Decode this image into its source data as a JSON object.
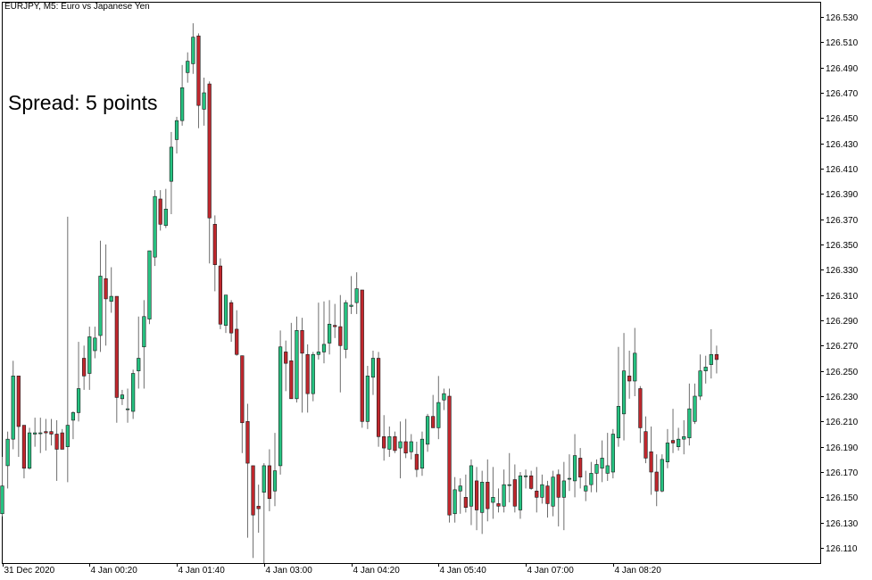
{
  "header": {
    "title": "EURJPY, M5:  Euro vs Japanese Yen",
    "spread_label": "Spread: 5 points"
  },
  "colors": {
    "bull": "#26c281",
    "bear": "#c0272d",
    "wick": "#6d6d6d",
    "grid_frame": "#000000",
    "background": "#ffffff"
  },
  "chart_data": {
    "type": "candlestick",
    "symbol": "EURJPY",
    "timeframe": "M5",
    "ylim": [
      126.098,
      126.542
    ],
    "y_ticks": [
      "126.530",
      "126.510",
      "126.490",
      "126.470",
      "126.450",
      "126.430",
      "126.410",
      "126.390",
      "126.370",
      "126.350",
      "126.330",
      "126.310",
      "126.290",
      "126.270",
      "126.250",
      "126.230",
      "126.210",
      "126.190",
      "126.170",
      "126.150",
      "126.130",
      "126.110"
    ],
    "x_tick_labels": [
      "31 Dec 2020",
      "4 Jan 00:20",
      "4 Jan 01:40",
      "4 Jan 03:00",
      "4 Jan 04:20",
      "4 Jan 05:40",
      "4 Jan 07:00",
      "4 Jan 08:20"
    ],
    "x_tick_bar_index": [
      0,
      16,
      32,
      48,
      64,
      80,
      96,
      112
    ],
    "candles": [
      {
        "o": 126.137,
        "h": 126.182,
        "l": 126.135,
        "c": 126.159
      },
      {
        "o": 126.175,
        "h": 126.202,
        "l": 126.157,
        "c": 126.196
      },
      {
        "o": 126.196,
        "h": 126.258,
        "l": 126.188,
        "c": 126.246
      },
      {
        "o": 126.246,
        "h": 126.246,
        "l": 126.182,
        "c": 126.206
      },
      {
        "o": 126.207,
        "h": 126.207,
        "l": 126.165,
        "c": 126.173
      },
      {
        "o": 126.173,
        "h": 126.205,
        "l": 126.172,
        "c": 126.201
      },
      {
        "o": 126.2,
        "h": 126.213,
        "l": 126.19,
        "c": 126.201
      },
      {
        "o": 126.201,
        "h": 126.213,
        "l": 126.185,
        "c": 126.201
      },
      {
        "o": 126.202,
        "h": 126.212,
        "l": 126.187,
        "c": 126.201
      },
      {
        "o": 126.202,
        "h": 126.212,
        "l": 126.191,
        "c": 126.2
      },
      {
        "o": 126.2,
        "h": 126.211,
        "l": 126.163,
        "c": 126.188
      },
      {
        "o": 126.201,
        "h": 126.204,
        "l": 126.19,
        "c": 126.188
      },
      {
        "o": 126.19,
        "h": 126.372,
        "l": 126.162,
        "c": 126.207
      },
      {
        "o": 126.211,
        "h": 126.218,
        "l": 126.196,
        "c": 126.217
      },
      {
        "o": 126.217,
        "h": 126.273,
        "l": 126.21,
        "c": 126.236
      },
      {
        "o": 126.26,
        "h": 126.27,
        "l": 126.235,
        "c": 126.246
      },
      {
        "o": 126.248,
        "h": 126.285,
        "l": 126.235,
        "c": 126.277
      },
      {
        "o": 126.266,
        "h": 126.285,
        "l": 126.26,
        "c": 126.276
      },
      {
        "o": 126.278,
        "h": 126.353,
        "l": 126.265,
        "c": 126.325
      },
      {
        "o": 126.323,
        "h": 126.35,
        "l": 126.27,
        "c": 126.307
      },
      {
        "o": 126.305,
        "h": 126.332,
        "l": 126.296,
        "c": 126.309
      },
      {
        "o": 126.309,
        "h": 126.309,
        "l": 126.209,
        "c": 126.229
      },
      {
        "o": 126.228,
        "h": 126.235,
        "l": 126.223,
        "c": 126.231
      },
      {
        "o": 126.22,
        "h": 126.236,
        "l": 126.209,
        "c": 126.22
      },
      {
        "o": 126.218,
        "h": 126.251,
        "l": 126.212,
        "c": 126.248
      },
      {
        "o": 126.25,
        "h": 126.293,
        "l": 126.236,
        "c": 126.26
      },
      {
        "o": 126.269,
        "h": 126.306,
        "l": 126.236,
        "c": 126.293
      },
      {
        "o": 126.291,
        "h": 126.345,
        "l": 126.287,
        "c": 126.345
      },
      {
        "o": 126.34,
        "h": 126.393,
        "l": 126.333,
        "c": 126.388
      },
      {
        "o": 126.386,
        "h": 126.393,
        "l": 126.361,
        "c": 126.366
      },
      {
        "o": 126.365,
        "h": 126.394,
        "l": 126.363,
        "c": 126.378
      },
      {
        "o": 126.4,
        "h": 126.439,
        "l": 126.374,
        "c": 126.427
      },
      {
        "o": 126.433,
        "h": 126.451,
        "l": 126.422,
        "c": 126.448
      },
      {
        "o": 126.448,
        "h": 126.492,
        "l": 126.444,
        "c": 126.474
      },
      {
        "o": 126.486,
        "h": 126.502,
        "l": 126.478,
        "c": 126.495
      },
      {
        "o": 126.493,
        "h": 126.525,
        "l": 126.485,
        "c": 126.514
      },
      {
        "o": 126.515,
        "h": 126.517,
        "l": 126.442,
        "c": 126.46
      },
      {
        "o": 126.457,
        "h": 126.482,
        "l": 126.444,
        "c": 126.47
      },
      {
        "o": 126.477,
        "h": 126.479,
        "l": 126.335,
        "c": 126.371
      },
      {
        "o": 126.366,
        "h": 126.373,
        "l": 126.313,
        "c": 126.334
      },
      {
        "o": 126.333,
        "h": 126.339,
        "l": 126.283,
        "c": 126.287
      },
      {
        "o": 126.286,
        "h": 126.31,
        "l": 126.28,
        "c": 126.31
      },
      {
        "o": 126.304,
        "h": 126.306,
        "l": 126.273,
        "c": 126.28
      },
      {
        "o": 126.283,
        "h": 126.298,
        "l": 126.262,
        "c": 126.263
      },
      {
        "o": 126.262,
        "h": 126.262,
        "l": 126.185,
        "c": 126.209
      },
      {
        "o": 126.21,
        "h": 126.224,
        "l": 126.118,
        "c": 126.177
      },
      {
        "o": 126.175,
        "h": 126.175,
        "l": 126.102,
        "c": 126.136
      },
      {
        "o": 126.143,
        "h": 126.16,
        "l": 126.122,
        "c": 126.141
      },
      {
        "o": 126.154,
        "h": 126.177,
        "l": 126.098,
        "c": 126.175
      },
      {
        "o": 126.175,
        "h": 126.188,
        "l": 126.139,
        "c": 126.149
      },
      {
        "o": 126.155,
        "h": 126.201,
        "l": 126.143,
        "c": 126.171
      },
      {
        "o": 126.175,
        "h": 126.282,
        "l": 126.168,
        "c": 126.269
      },
      {
        "o": 126.265,
        "h": 126.274,
        "l": 126.234,
        "c": 126.256
      },
      {
        "o": 126.258,
        "h": 126.288,
        "l": 126.228,
        "c": 126.228
      },
      {
        "o": 126.228,
        "h": 126.293,
        "l": 126.225,
        "c": 126.282
      },
      {
        "o": 126.282,
        "h": 126.292,
        "l": 126.217,
        "c": 126.264
      },
      {
        "o": 126.263,
        "h": 126.271,
        "l": 126.217,
        "c": 126.232
      },
      {
        "o": 126.232,
        "h": 126.265,
        "l": 126.226,
        "c": 126.263
      },
      {
        "o": 126.263,
        "h": 126.304,
        "l": 126.259,
        "c": 126.265
      },
      {
        "o": 126.265,
        "h": 126.305,
        "l": 126.256,
        "c": 126.271
      },
      {
        "o": 126.272,
        "h": 126.306,
        "l": 126.263,
        "c": 126.287
      },
      {
        "o": 126.286,
        "h": 126.303,
        "l": 126.276,
        "c": 126.285
      },
      {
        "o": 126.285,
        "h": 126.31,
        "l": 126.233,
        "c": 126.27
      },
      {
        "o": 126.267,
        "h": 126.306,
        "l": 126.26,
        "c": 126.304
      },
      {
        "o": 126.301,
        "h": 126.325,
        "l": 126.295,
        "c": 126.302
      },
      {
        "o": 126.304,
        "h": 126.328,
        "l": 126.295,
        "c": 126.315
      },
      {
        "o": 126.314,
        "h": 126.314,
        "l": 126.205,
        "c": 126.21
      },
      {
        "o": 126.21,
        "h": 126.254,
        "l": 126.204,
        "c": 126.246
      },
      {
        "o": 126.245,
        "h": 126.266,
        "l": 126.231,
        "c": 126.26
      },
      {
        "o": 126.26,
        "h": 126.265,
        "l": 126.19,
        "c": 126.198
      },
      {
        "o": 126.198,
        "h": 126.215,
        "l": 126.179,
        "c": 126.189
      },
      {
        "o": 126.188,
        "h": 126.206,
        "l": 126.182,
        "c": 126.198
      },
      {
        "o": 126.198,
        "h": 126.202,
        "l": 126.185,
        "c": 126.187
      },
      {
        "o": 126.189,
        "h": 126.21,
        "l": 126.165,
        "c": 126.194
      },
      {
        "o": 126.194,
        "h": 126.212,
        "l": 126.181,
        "c": 126.185
      },
      {
        "o": 126.186,
        "h": 126.2,
        "l": 126.18,
        "c": 126.194
      },
      {
        "o": 126.184,
        "h": 126.194,
        "l": 126.166,
        "c": 126.172
      },
      {
        "o": 126.173,
        "h": 126.202,
        "l": 126.167,
        "c": 126.196
      },
      {
        "o": 126.192,
        "h": 126.216,
        "l": 126.186,
        "c": 126.214
      },
      {
        "o": 126.214,
        "h": 126.231,
        "l": 126.206,
        "c": 126.205
      },
      {
        "o": 126.205,
        "h": 126.246,
        "l": 126.196,
        "c": 126.225
      },
      {
        "o": 126.227,
        "h": 126.236,
        "l": 126.219,
        "c": 126.232
      },
      {
        "o": 126.23,
        "h": 126.236,
        "l": 126.13,
        "c": 126.136
      },
      {
        "o": 126.137,
        "h": 126.166,
        "l": 126.13,
        "c": 126.156
      },
      {
        "o": 126.155,
        "h": 126.165,
        "l": 126.137,
        "c": 126.159
      },
      {
        "o": 126.15,
        "h": 126.168,
        "l": 126.138,
        "c": 126.142
      },
      {
        "o": 126.143,
        "h": 126.18,
        "l": 126.128,
        "c": 126.175
      },
      {
        "o": 126.163,
        "h": 126.174,
        "l": 126.124,
        "c": 126.14
      },
      {
        "o": 126.138,
        "h": 126.171,
        "l": 126.121,
        "c": 126.162
      },
      {
        "o": 126.162,
        "h": 126.18,
        "l": 126.131,
        "c": 126.141
      },
      {
        "o": 126.146,
        "h": 126.174,
        "l": 126.133,
        "c": 126.15
      },
      {
        "o": 126.145,
        "h": 126.157,
        "l": 126.138,
        "c": 126.143
      },
      {
        "o": 126.143,
        "h": 126.172,
        "l": 126.138,
        "c": 126.16
      },
      {
        "o": 126.16,
        "h": 126.185,
        "l": 126.146,
        "c": 126.16
      },
      {
        "o": 126.164,
        "h": 126.176,
        "l": 126.138,
        "c": 126.143
      },
      {
        "o": 126.14,
        "h": 126.17,
        "l": 126.133,
        "c": 126.167
      },
      {
        "o": 126.167,
        "h": 126.172,
        "l": 126.157,
        "c": 126.167
      },
      {
        "o": 126.167,
        "h": 126.171,
        "l": 126.156,
        "c": 126.157
      },
      {
        "o": 126.155,
        "h": 126.174,
        "l": 126.138,
        "c": 126.15
      },
      {
        "o": 126.15,
        "h": 126.168,
        "l": 126.145,
        "c": 126.16
      },
      {
        "o": 126.159,
        "h": 126.163,
        "l": 126.134,
        "c": 126.145
      },
      {
        "o": 126.143,
        "h": 126.171,
        "l": 126.135,
        "c": 126.166
      },
      {
        "o": 126.168,
        "h": 126.172,
        "l": 126.127,
        "c": 126.15
      },
      {
        "o": 126.15,
        "h": 126.178,
        "l": 126.124,
        "c": 126.163
      },
      {
        "o": 126.165,
        "h": 126.184,
        "l": 126.155,
        "c": 126.165
      },
      {
        "o": 126.163,
        "h": 126.2,
        "l": 126.15,
        "c": 126.183
      },
      {
        "o": 126.181,
        "h": 126.189,
        "l": 126.157,
        "c": 126.166
      },
      {
        "o": 126.155,
        "h": 126.171,
        "l": 126.147,
        "c": 126.159
      },
      {
        "o": 126.16,
        "h": 126.178,
        "l": 126.154,
        "c": 126.169
      },
      {
        "o": 126.169,
        "h": 126.18,
        "l": 126.154,
        "c": 126.176
      },
      {
        "o": 126.173,
        "h": 126.195,
        "l": 126.162,
        "c": 126.181
      },
      {
        "o": 126.169,
        "h": 126.201,
        "l": 126.163,
        "c": 126.175
      },
      {
        "o": 126.17,
        "h": 126.204,
        "l": 126.165,
        "c": 126.2
      },
      {
        "o": 126.197,
        "h": 126.269,
        "l": 126.19,
        "c": 126.222
      },
      {
        "o": 126.216,
        "h": 126.28,
        "l": 126.195,
        "c": 126.25
      },
      {
        "o": 126.246,
        "h": 126.266,
        "l": 126.228,
        "c": 126.242
      },
      {
        "o": 126.242,
        "h": 126.284,
        "l": 126.23,
        "c": 126.264
      },
      {
        "o": 126.236,
        "h": 126.238,
        "l": 126.193,
        "c": 126.205
      },
      {
        "o": 126.202,
        "h": 126.214,
        "l": 126.177,
        "c": 126.181
      },
      {
        "o": 126.186,
        "h": 126.206,
        "l": 126.152,
        "c": 126.17
      },
      {
        "o": 126.17,
        "h": 126.184,
        "l": 126.143,
        "c": 126.155
      },
      {
        "o": 126.155,
        "h": 126.184,
        "l": 126.154,
        "c": 126.18
      },
      {
        "o": 126.178,
        "h": 126.204,
        "l": 126.173,
        "c": 126.193
      },
      {
        "o": 126.195,
        "h": 126.22,
        "l": 126.185,
        "c": 126.193
      },
      {
        "o": 126.19,
        "h": 126.205,
        "l": 126.187,
        "c": 126.196
      },
      {
        "o": 126.196,
        "h": 126.211,
        "l": 126.184,
        "c": 126.198
      },
      {
        "o": 126.197,
        "h": 126.24,
        "l": 126.191,
        "c": 126.22
      },
      {
        "o": 126.21,
        "h": 126.24,
        "l": 126.208,
        "c": 126.23
      },
      {
        "o": 126.23,
        "h": 126.263,
        "l": 126.227,
        "c": 126.25
      },
      {
        "o": 126.25,
        "h": 126.262,
        "l": 126.24,
        "c": 126.253
      },
      {
        "o": 126.255,
        "h": 126.283,
        "l": 126.244,
        "c": 126.263
      },
      {
        "o": 126.263,
        "h": 126.27,
        "l": 126.248,
        "c": 126.259
      }
    ]
  }
}
